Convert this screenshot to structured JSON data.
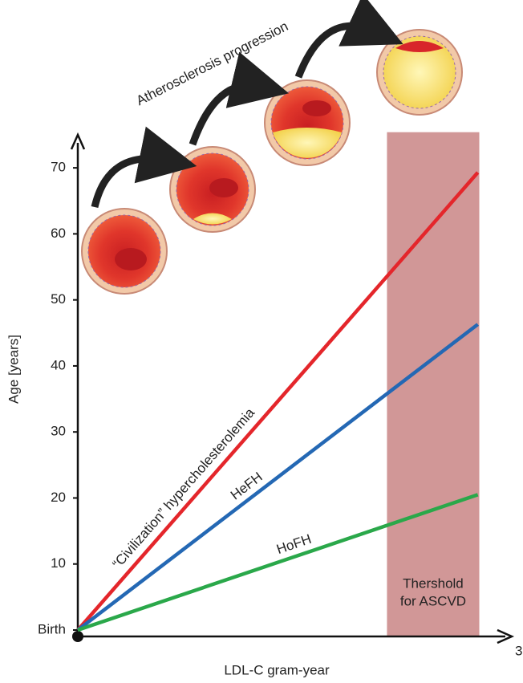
{
  "chart_data": {
    "type": "line",
    "title": "Atherosclerosis progression",
    "xlabel": "LDL-C gram-year",
    "ylabel": "Age [years]",
    "xlim": [
      0,
      3
    ],
    "xticks": [
      3
    ],
    "ylim": [
      0,
      75
    ],
    "yticks": [
      {
        "value": 0,
        "label": "Birth"
      },
      10,
      20,
      30,
      40,
      50,
      60,
      70
    ],
    "series": [
      {
        "name": "“Civilization” hypercholesterolemia",
        "color": "#e4262b",
        "x": [
          0,
          2.73
        ],
        "values": [
          0,
          69.3
        ]
      },
      {
        "name": "HeFH",
        "color": "#2468b4",
        "x": [
          0,
          2.73
        ],
        "values": [
          0,
          46.3
        ]
      },
      {
        "name": "HoFH",
        "color": "#2aa84a",
        "x": [
          0,
          2.73
        ],
        "values": [
          0,
          20.5
        ]
      }
    ],
    "threshold_band": {
      "label": [
        "Thershold",
        "for ASCVD"
      ],
      "x": [
        2.11,
        2.74
      ],
      "ylim": [
        0,
        75.4
      ],
      "color": "#c98585"
    }
  }
}
